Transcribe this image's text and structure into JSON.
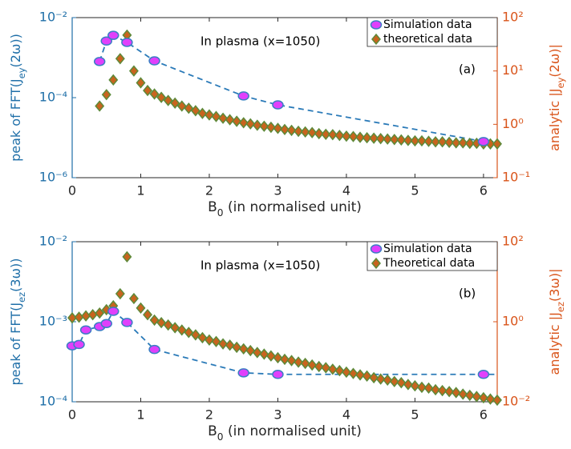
{
  "chart_data": [
    {
      "type": "line",
      "annotations": [
        "In plasma (x=1050)",
        "(a)"
      ],
      "xlabel": [
        {
          "text": "B"
        },
        {
          "sub": "0"
        },
        {
          "text": " (in normalised unit)"
        }
      ],
      "ylabel": [
        {
          "text": "peak of FFT(J"
        },
        {
          "sub": "ey"
        },
        {
          "text": "(2ω))"
        }
      ],
      "y2label": [
        {
          "text": "analytic |J"
        },
        {
          "sub": "ey"
        },
        {
          "text": "(2ω)|"
        }
      ],
      "xlim": [
        0,
        6.2
      ],
      "xticks": [
        0,
        1,
        2,
        3,
        4,
        5,
        6
      ],
      "ylim": [
        1e-06,
        0.01
      ],
      "ylog": true,
      "yticks": [
        {
          "value": 1e-06,
          "label": "10⁻⁶"
        },
        {
          "value": 0.0001,
          "label": "10⁻⁴"
        },
        {
          "value": 0.01,
          "label": "10⁻²"
        }
      ],
      "y2lim": [
        0.1,
        100
      ],
      "y2log": true,
      "y2ticks": [
        {
          "value": 0.1,
          "label": "10⁻¹"
        },
        {
          "value": 1,
          "label": "10⁰"
        },
        {
          "value": 10,
          "label": "10¹"
        },
        {
          "value": 100,
          "label": "10²"
        }
      ],
      "ycolor": "#1f6fa8",
      "y2color": "#d9541a",
      "legend": "upper right",
      "series": [
        {
          "name": "Simulation data",
          "marker": "ellipse",
          "color": "#e040fb",
          "edgecolor": "#3b7ec4",
          "line_style": "dashed",
          "line_color": "#2a7ab8",
          "x": [
            0.4,
            0.5,
            0.6,
            0.8,
            1.2,
            2.5,
            3.0,
            6.0
          ],
          "values": [
            0.0008,
            0.0026,
            0.0036,
            0.0024,
            0.00083,
            0.00011,
            6.6e-05,
            8e-06
          ]
        },
        {
          "name": "theoretical data",
          "marker": "diamond",
          "color": "#c8641e",
          "edgecolor": "#5d8a3a",
          "line_style": "none",
          "axis": "y2",
          "x": [
            0.4,
            0.5,
            0.6,
            0.7,
            0.8,
            0.9,
            1.0,
            1.1,
            1.2,
            1.3,
            1.4,
            1.5,
            1.6,
            1.7,
            1.8,
            1.9,
            2.0,
            2.1,
            2.2,
            2.3,
            2.4,
            2.5,
            2.6,
            2.7,
            2.8,
            2.9,
            3.0,
            3.1,
            3.2,
            3.3,
            3.4,
            3.5,
            3.6,
            3.7,
            3.8,
            3.9,
            4.0,
            4.1,
            4.2,
            4.3,
            4.4,
            4.5,
            4.6,
            4.7,
            4.8,
            4.9,
            5.0,
            5.1,
            5.2,
            5.3,
            5.4,
            5.5,
            5.6,
            5.7,
            5.8,
            5.9,
            6.0,
            6.1,
            6.2
          ],
          "values": [
            2.2,
            3.6,
            6.8,
            17,
            47,
            10,
            6,
            4.3,
            3.7,
            3.2,
            2.8,
            2.5,
            2.2,
            2.0,
            1.8,
            1.6,
            1.5,
            1.4,
            1.3,
            1.22,
            1.14,
            1.07,
            1.02,
            0.96,
            0.92,
            0.88,
            0.84,
            0.8,
            0.77,
            0.74,
            0.72,
            0.7,
            0.67,
            0.65,
            0.64,
            0.62,
            0.6,
            0.59,
            0.57,
            0.56,
            0.55,
            0.54,
            0.53,
            0.52,
            0.51,
            0.5,
            0.49,
            0.49,
            0.48,
            0.47,
            0.47,
            0.46,
            0.45,
            0.45,
            0.44,
            0.44,
            0.43,
            0.43,
            0.43
          ]
        }
      ]
    },
    {
      "type": "line",
      "annotations": [
        "In plasma (x=1050)",
        "(b)"
      ],
      "xlabel": [
        {
          "text": "B"
        },
        {
          "sub": "0"
        },
        {
          "text": " (in normalised unit)"
        }
      ],
      "ylabel": [
        {
          "text": "peak of FFT(J"
        },
        {
          "sub": "ez"
        },
        {
          "text": "(3ω))"
        }
      ],
      "y2label": [
        {
          "text": "analytic |J"
        },
        {
          "sub": "ez"
        },
        {
          "text": "(3ω)|"
        }
      ],
      "xlim": [
        0,
        6.2
      ],
      "xticks": [
        0,
        1,
        2,
        3,
        4,
        5,
        6
      ],
      "ylim": [
        0.0001,
        0.01
      ],
      "ylog": true,
      "yticks": [
        {
          "value": 0.0001,
          "label": "10⁻⁴"
        },
        {
          "value": 0.001,
          "label": "10⁻³"
        },
        {
          "value": 0.01,
          "label": "10⁻²"
        }
      ],
      "y2lim": [
        0.01,
        100
      ],
      "y2log": true,
      "y2ticks": [
        {
          "value": 0.01,
          "label": "10⁻²"
        },
        {
          "value": 1,
          "label": "10⁰"
        },
        {
          "value": 100,
          "label": "10²"
        }
      ],
      "ycolor": "#1f6fa8",
      "y2color": "#d9541a",
      "legend": "upper right",
      "series": [
        {
          "name": "Simulation data",
          "marker": "ellipse",
          "color": "#e040fb",
          "edgecolor": "#3b7ec4",
          "line_style": "dashed",
          "line_color": "#2a7ab8",
          "x": [
            0,
            0.1,
            0.2,
            0.4,
            0.5,
            0.6,
            0.8,
            1.2,
            2.5,
            3.0,
            6.0
          ],
          "values": [
            0.0005,
            0.00052,
            0.00079,
            0.00087,
            0.00095,
            0.00135,
            0.00098,
            0.00045,
            0.00023,
            0.00022,
            0.00022
          ]
        },
        {
          "name": "Theoretical data",
          "marker": "diamond",
          "color": "#c8641e",
          "edgecolor": "#5d8a3a",
          "line_style": "none",
          "axis": "y2",
          "x": [
            0,
            0.1,
            0.2,
            0.3,
            0.4,
            0.5,
            0.6,
            0.7,
            0.8,
            0.9,
            1.0,
            1.1,
            1.2,
            1.3,
            1.4,
            1.5,
            1.6,
            1.7,
            1.8,
            1.9,
            2.0,
            2.1,
            2.2,
            2.3,
            2.4,
            2.5,
            2.6,
            2.7,
            2.8,
            2.9,
            3.0,
            3.1,
            3.2,
            3.3,
            3.4,
            3.5,
            3.6,
            3.7,
            3.8,
            3.9,
            4.0,
            4.1,
            4.2,
            4.3,
            4.4,
            4.5,
            4.6,
            4.7,
            4.8,
            4.9,
            5.0,
            5.1,
            5.2,
            5.3,
            5.4,
            5.5,
            5.6,
            5.7,
            5.8,
            5.9,
            6.0,
            6.1,
            6.2
          ],
          "values": [
            1.25,
            1.3,
            1.4,
            1.5,
            1.65,
            2.0,
            2.5,
            5,
            42,
            3.8,
            2.2,
            1.5,
            1.1,
            0.95,
            0.83,
            0.71,
            0.62,
            0.54,
            0.47,
            0.4,
            0.35,
            0.32,
            0.28,
            0.26,
            0.23,
            0.21,
            0.19,
            0.17,
            0.155,
            0.14,
            0.126,
            0.115,
            0.107,
            0.098,
            0.091,
            0.083,
            0.076,
            0.071,
            0.065,
            0.06,
            0.055,
            0.051,
            0.047,
            0.044,
            0.04,
            0.037,
            0.035,
            0.032,
            0.03,
            0.027,
            0.025,
            0.023,
            0.022,
            0.02,
            0.019,
            0.018,
            0.017,
            0.0155,
            0.0145,
            0.0135,
            0.0126,
            0.0117,
            0.011
          ]
        }
      ]
    }
  ]
}
